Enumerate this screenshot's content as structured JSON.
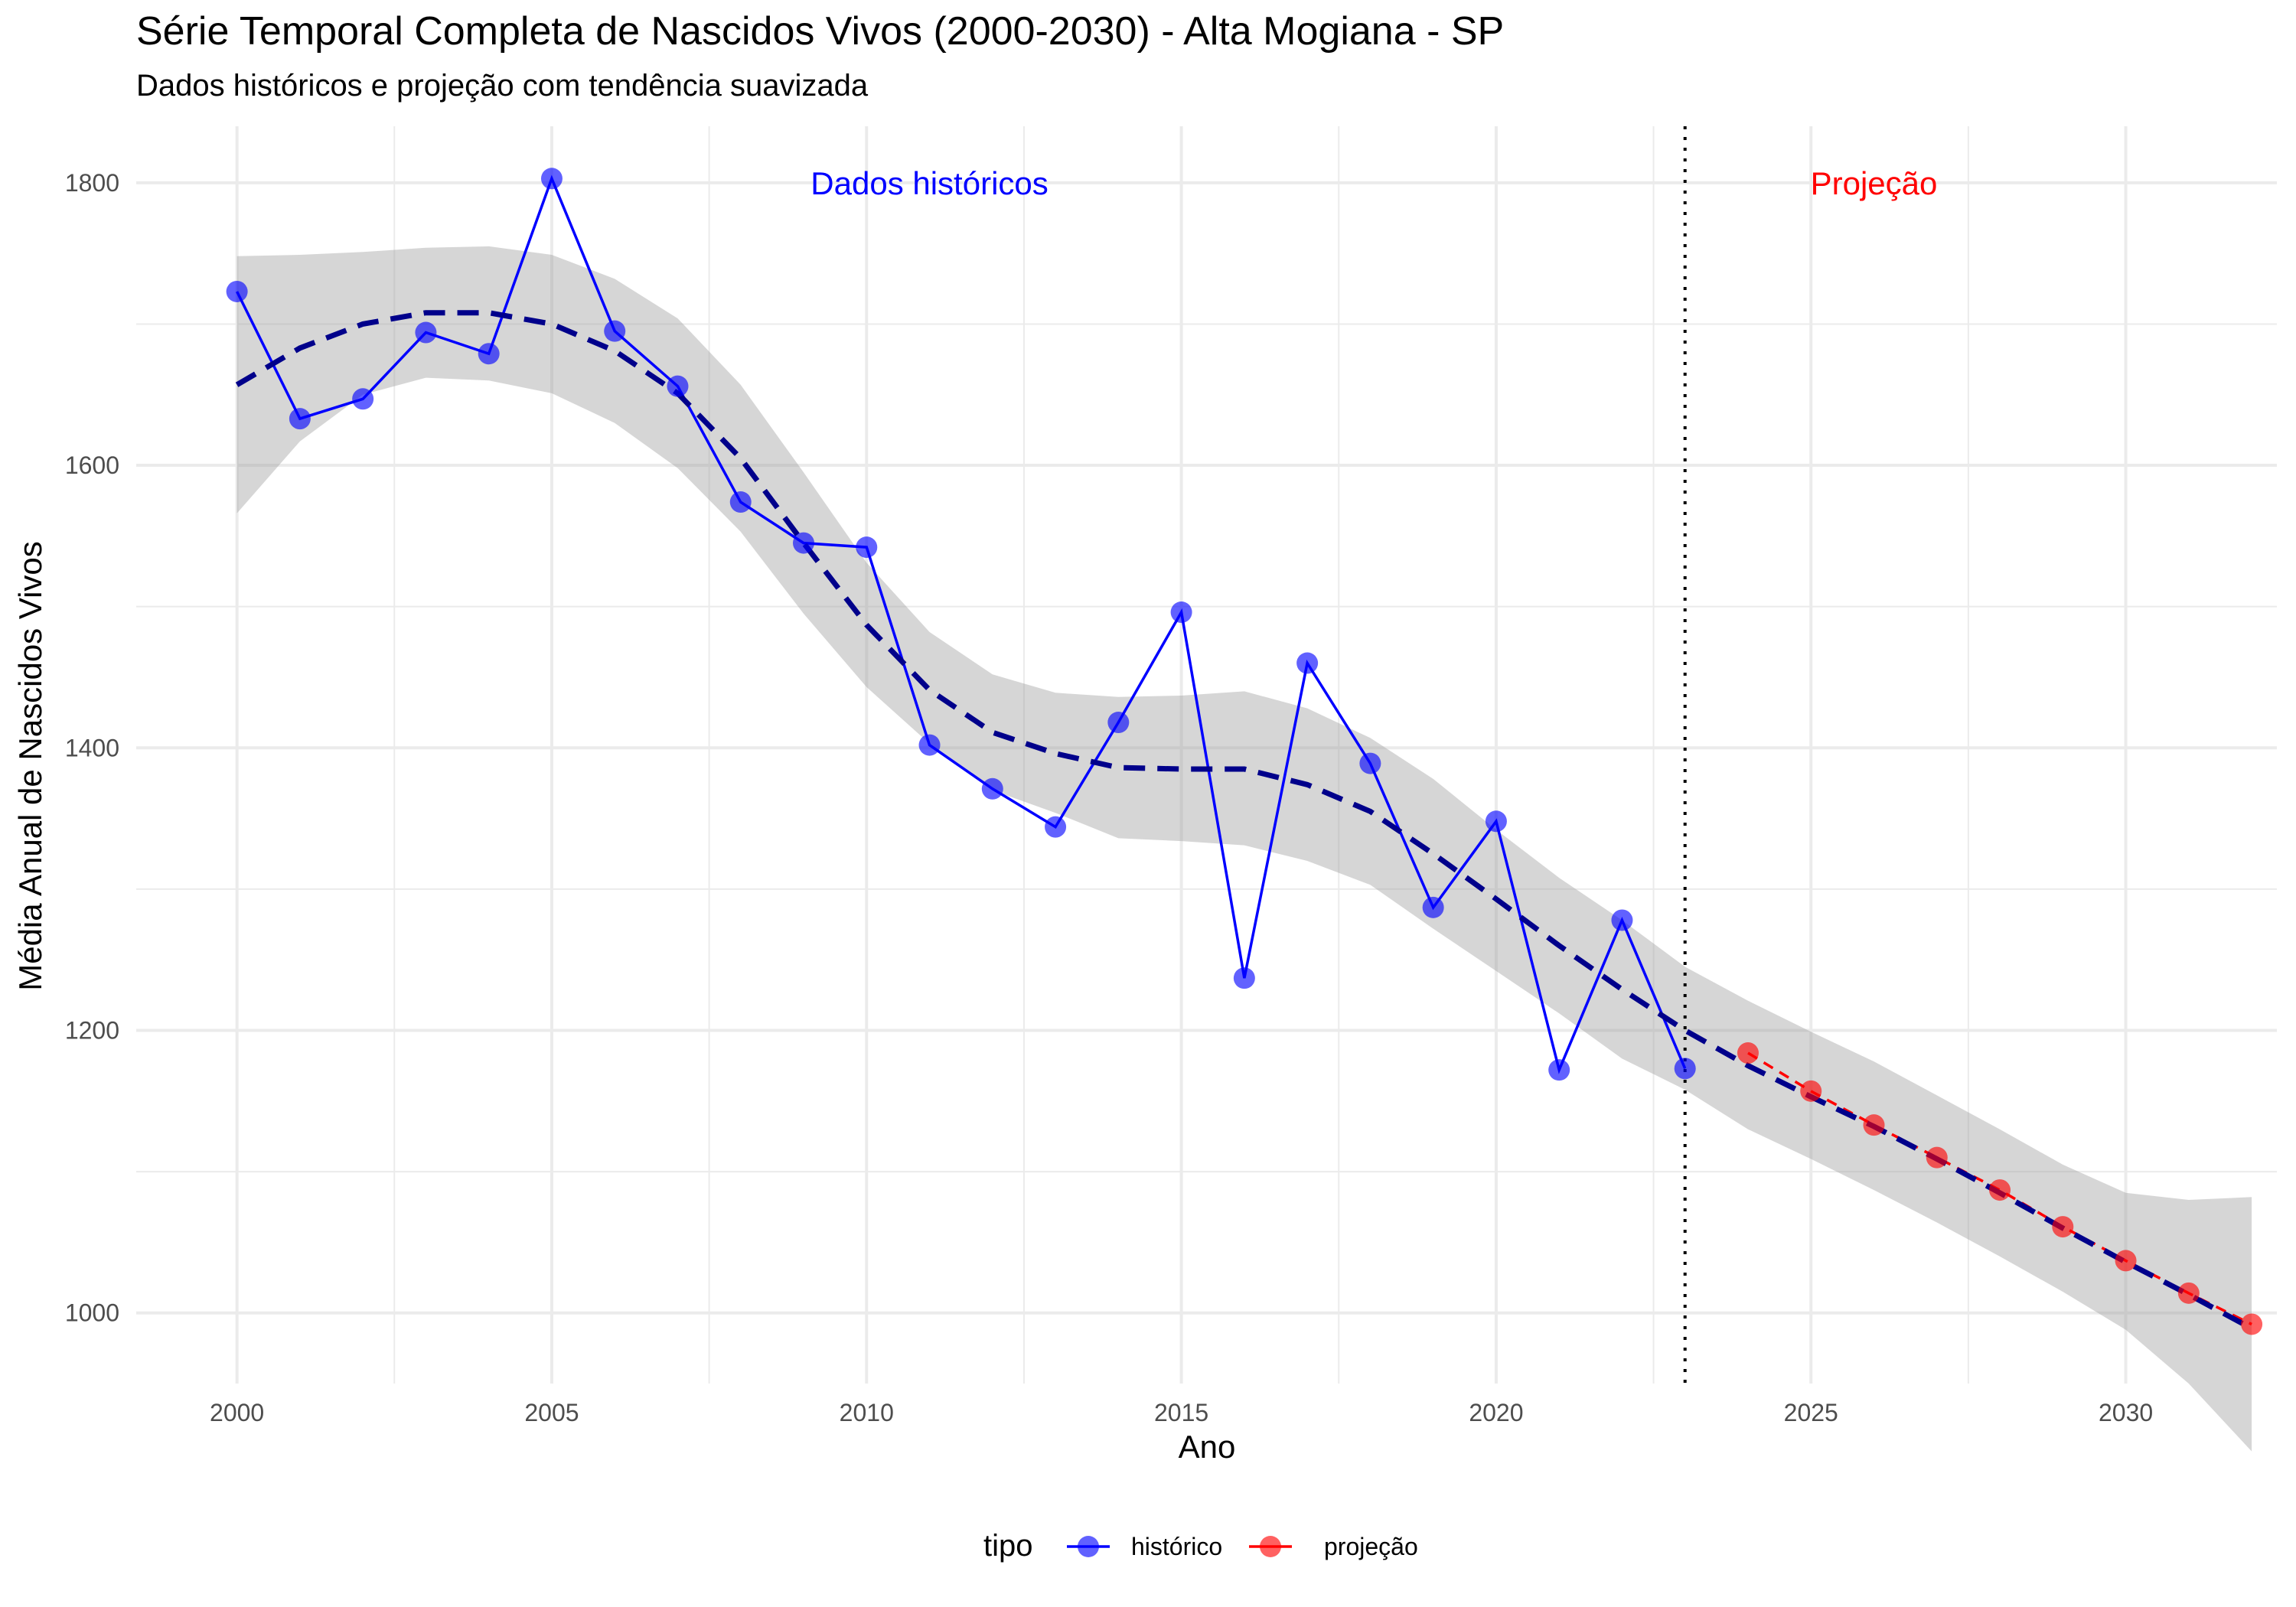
{
  "chart_data": {
    "type": "line",
    "title": "Série Temporal Completa de Nascidos Vivos (2000-2030) -  Alta Mogiana - SP",
    "subtitle": "Dados históricos e projeção com tendência suavizada",
    "xlabel": "Ano",
    "ylabel": "Média Anual de Nascidos Vivos",
    "xlim": [
      1998.4,
      2032.4
    ],
    "ylim": [
      950,
      1840
    ],
    "x_ticks": [
      2000,
      2005,
      2010,
      2015,
      2020,
      2025,
      2030
    ],
    "y_ticks": [
      1000,
      1200,
      1400,
      1600,
      1800
    ],
    "grid": true,
    "divider_x": 2023,
    "annotations": [
      {
        "text": "Dados históricos",
        "x": 2011,
        "y": 1800,
        "color": "#0000ff"
      },
      {
        "text": "Projeção",
        "x": 2026,
        "y": 1800,
        "color": "#ff0000"
      }
    ],
    "legend": {
      "title": "tipo",
      "position": "bottom"
    },
    "series": [
      {
        "name": "histórico",
        "color": "#0000ff",
        "line_style": "solid",
        "x": [
          2000,
          2001,
          2002,
          2003,
          2004,
          2005,
          2006,
          2007,
          2008,
          2009,
          2010,
          2011,
          2012,
          2013,
          2014,
          2015,
          2016,
          2017,
          2018,
          2019,
          2020,
          2021,
          2022,
          2023
        ],
        "values": [
          1723,
          1633,
          1647,
          1694,
          1679,
          1803,
          1695,
          1656,
          1574,
          1545,
          1542,
          1402,
          1371,
          1344,
          1418,
          1496,
          1237,
          1460,
          1389,
          1287,
          1348,
          1172,
          1278,
          1173
        ]
      },
      {
        "name": "projeção",
        "color": "#ff0000",
        "line_style": "dashed",
        "x": [
          2024,
          2025,
          2026,
          2027,
          2028,
          2029,
          2030,
          2031,
          2032
        ],
        "values": [
          1184,
          1157,
          1133,
          1110,
          1087,
          1061,
          1037,
          1014,
          992
        ]
      }
    ],
    "trend": {
      "color": "#00008b",
      "line_style": "dashed",
      "x": [
        2000,
        2001,
        2002,
        2003,
        2004,
        2005,
        2006,
        2007,
        2008,
        2009,
        2010,
        2011,
        2012,
        2013,
        2014,
        2015,
        2016,
        2017,
        2018,
        2019,
        2020,
        2021,
        2022,
        2023,
        2024,
        2025,
        2026,
        2027,
        2028,
        2029,
        2030,
        2031,
        2032
      ],
      "values": [
        1657,
        1683,
        1700,
        1708,
        1708,
        1700,
        1681,
        1651,
        1605,
        1545,
        1487,
        1441,
        1411,
        1396,
        1386,
        1385,
        1385,
        1374,
        1355,
        1325,
        1293,
        1260,
        1229,
        1200,
        1175,
        1153,
        1132,
        1109,
        1085,
        1060,
        1036,
        1013,
        989
      ],
      "ci_lower": [
        1566,
        1617,
        1650,
        1662,
        1660,
        1651,
        1630,
        1598,
        1553,
        1495,
        1443,
        1403,
        1370,
        1354,
        1336,
        1334,
        1331,
        1320,
        1303,
        1272,
        1242,
        1212,
        1180,
        1158,
        1130,
        1109,
        1087,
        1064,
        1040,
        1015,
        988,
        950,
        902
      ],
      "ci_upper": [
        1748,
        1749,
        1751,
        1754,
        1755,
        1749,
        1732,
        1704,
        1657,
        1595,
        1531,
        1482,
        1452,
        1439,
        1436,
        1437,
        1440,
        1428,
        1407,
        1378,
        1342,
        1308,
        1278,
        1245,
        1221,
        1199,
        1178,
        1154,
        1130,
        1105,
        1085,
        1080,
        1082
      ]
    }
  }
}
